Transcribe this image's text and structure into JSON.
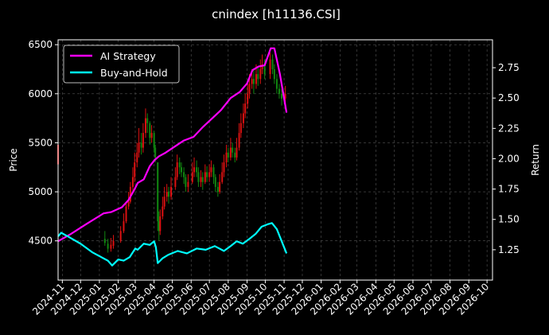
{
  "chart_data": {
    "type": "line",
    "title": "cnindex [h11136.CSI]",
    "ylabel_left": "Price",
    "ylabel_right": "Return",
    "ylim_left": [
      4100,
      6550
    ],
    "ylim_right": [
      1.0,
      2.98
    ],
    "xlim": [
      "2024-10-25",
      "2026-10-10"
    ],
    "x_tick_labels": [
      "2024-11",
      "2024-12",
      "2025-01",
      "2025-02",
      "2025-03",
      "2025-04",
      "2025-05",
      "2025-06",
      "2025-07",
      "2025-08",
      "2025-09",
      "2025-10",
      "2025-11",
      "2025-12",
      "2026-01",
      "2026-02",
      "2026-03",
      "2026-04",
      "2026-05",
      "2026-06",
      "2026-07",
      "2026-08",
      "2026-09",
      "2026-10"
    ],
    "y_ticks_left": [
      4500,
      5000,
      5500,
      6000,
      6500
    ],
    "y_ticks_right": [
      1.25,
      1.5,
      1.75,
      2.0,
      2.25,
      2.5,
      2.75
    ],
    "grid": true,
    "legend": {
      "placement": "top-left",
      "entries": [
        "AI Strategy",
        "Buy-and-Hold"
      ]
    },
    "colors": {
      "background": "#000000",
      "ai_strategy": "#ff00ff",
      "buy_and_hold": "#00ffff",
      "candle_up": "#dd1111",
      "candle_down": "#118811",
      "grid": "#555555"
    },
    "series": [
      {
        "name": "AI Strategy",
        "axis": "right",
        "points": [
          [
            "2024-10-25",
            1.32
          ],
          [
            "2024-11-15",
            1.38
          ],
          [
            "2024-12-10",
            1.46
          ],
          [
            "2025-01-08",
            1.55
          ],
          [
            "2025-01-20",
            1.56
          ],
          [
            "2025-02-07",
            1.6
          ],
          [
            "2025-02-18",
            1.66
          ],
          [
            "2025-02-28",
            1.75
          ],
          [
            "2025-03-05",
            1.8
          ],
          [
            "2025-03-15",
            1.83
          ],
          [
            "2025-03-25",
            1.94
          ],
          [
            "2025-04-02",
            1.99
          ],
          [
            "2025-04-09",
            2.02
          ],
          [
            "2025-04-20",
            2.05
          ],
          [
            "2025-05-05",
            2.1
          ],
          [
            "2025-05-20",
            2.15
          ],
          [
            "2025-06-05",
            2.18
          ],
          [
            "2025-06-20",
            2.26
          ],
          [
            "2025-07-05",
            2.33
          ],
          [
            "2025-07-20",
            2.4
          ],
          [
            "2025-08-05",
            2.5
          ],
          [
            "2025-08-20",
            2.55
          ],
          [
            "2025-09-01",
            2.62
          ],
          [
            "2025-09-10",
            2.73
          ],
          [
            "2025-09-20",
            2.76
          ],
          [
            "2025-09-30",
            2.77
          ],
          [
            "2025-10-05",
            2.84
          ],
          [
            "2025-10-10",
            2.91
          ],
          [
            "2025-10-16",
            2.91
          ],
          [
            "2025-10-25",
            2.7
          ],
          [
            "2025-11-05",
            2.38
          ]
        ]
      },
      {
        "name": "Buy-and-Hold",
        "axis": "right",
        "points": [
          [
            "2024-10-25",
            1.36
          ],
          [
            "2024-10-30",
            1.39
          ],
          [
            "2024-11-10",
            1.36
          ],
          [
            "2024-12-01",
            1.3
          ],
          [
            "2024-12-20",
            1.23
          ],
          [
            "2025-01-15",
            1.16
          ],
          [
            "2025-01-22",
            1.12
          ],
          [
            "2025-02-01",
            1.17
          ],
          [
            "2025-02-10",
            1.16
          ],
          [
            "2025-02-20",
            1.19
          ],
          [
            "2025-03-01",
            1.26
          ],
          [
            "2025-03-05",
            1.25
          ],
          [
            "2025-03-15",
            1.3
          ],
          [
            "2025-03-25",
            1.29
          ],
          [
            "2025-04-01",
            1.32
          ],
          [
            "2025-04-04",
            1.27
          ],
          [
            "2025-04-07",
            1.14
          ],
          [
            "2025-04-15",
            1.18
          ],
          [
            "2025-04-25",
            1.21
          ],
          [
            "2025-05-10",
            1.24
          ],
          [
            "2025-05-25",
            1.22
          ],
          [
            "2025-06-10",
            1.26
          ],
          [
            "2025-06-25",
            1.25
          ],
          [
            "2025-07-10",
            1.28
          ],
          [
            "2025-07-25",
            1.24
          ],
          [
            "2025-08-05",
            1.28
          ],
          [
            "2025-08-15",
            1.32
          ],
          [
            "2025-08-25",
            1.3
          ],
          [
            "2025-09-05",
            1.34
          ],
          [
            "2025-09-15",
            1.38
          ],
          [
            "2025-09-25",
            1.44
          ],
          [
            "2025-10-05",
            1.46
          ],
          [
            "2025-10-12",
            1.47
          ],
          [
            "2025-10-20",
            1.42
          ],
          [
            "2025-11-05",
            1.22
          ]
        ]
      }
    ],
    "candlesticks": {
      "axis": "left",
      "description": "approximate daily OHLC: each entry [date, open, close, high, low]",
      "data": [
        [
          "2024-10-25",
          5280,
          5480,
          5620,
          5250
        ],
        [
          "2025-01-10",
          4520,
          4480,
          4600,
          4450
        ],
        [
          "2025-01-15",
          4470,
          4420,
          4520,
          4380
        ],
        [
          "2025-01-20",
          4420,
          4460,
          4530,
          4390
        ],
        [
          "2025-01-24",
          4450,
          4500,
          4560,
          4420
        ],
        [
          "2025-02-05",
          4500,
          4600,
          4650,
          4480
        ],
        [
          "2025-02-10",
          4600,
          4700,
          4780,
          4580
        ],
        [
          "2025-02-14",
          4700,
          4850,
          4900,
          4680
        ],
        [
          "2025-02-18",
          4850,
          4900,
          5000,
          4820
        ],
        [
          "2025-02-21",
          4900,
          5050,
          5100,
          4880
        ],
        [
          "2025-02-25",
          5050,
          5150,
          5250,
          5000
        ],
        [
          "2025-02-28",
          5150,
          5300,
          5400,
          5100
        ],
        [
          "2025-03-04",
          5300,
          5400,
          5500,
          5250
        ],
        [
          "2025-03-07",
          5400,
          5500,
          5650,
          5350
        ],
        [
          "2025-03-11",
          5500,
          5450,
          5600,
          5380
        ],
        [
          "2025-03-14",
          5450,
          5600,
          5700,
          5400
        ],
        [
          "2025-03-18",
          5600,
          5750,
          5850,
          5550
        ],
        [
          "2025-03-21",
          5750,
          5700,
          5800,
          5600
        ],
        [
          "2025-03-25",
          5700,
          5550,
          5720,
          5480
        ],
        [
          "2025-03-28",
          5550,
          5600,
          5680,
          5500
        ],
        [
          "2025-04-01",
          5600,
          5450,
          5620,
          5400
        ],
        [
          "2025-04-03",
          5450,
          5350,
          5480,
          5300
        ],
        [
          "2025-04-07",
          5300,
          4700,
          5300,
          4600
        ],
        [
          "2025-04-09",
          4700,
          4600,
          4800,
          4500
        ],
        [
          "2025-04-11",
          4600,
          4750,
          4820,
          4560
        ],
        [
          "2025-04-15",
          4750,
          4850,
          4950,
          4720
        ],
        [
          "2025-04-18",
          4850,
          4950,
          5050,
          4820
        ],
        [
          "2025-04-22",
          4950,
          5000,
          5080,
          4900
        ],
        [
          "2025-04-25",
          5000,
          4950,
          5050,
          4880
        ],
        [
          "2025-04-29",
          4950,
          5050,
          5150,
          4920
        ],
        [
          "2025-05-06",
          5050,
          5150,
          5250,
          5020
        ],
        [
          "2025-05-09",
          5150,
          5300,
          5380,
          5120
        ],
        [
          "2025-05-13",
          5300,
          5250,
          5350,
          5180
        ],
        [
          "2025-05-16",
          5250,
          5200,
          5300,
          5150
        ],
        [
          "2025-05-20",
          5200,
          5150,
          5250,
          5080
        ],
        [
          "2025-05-23",
          5150,
          5050,
          5180,
          5000
        ],
        [
          "2025-05-27",
          5050,
          5100,
          5180,
          5000
        ],
        [
          "2025-06-03",
          5100,
          5200,
          5300,
          5080
        ],
        [
          "2025-06-06",
          5200,
          5250,
          5350,
          5150
        ],
        [
          "2025-06-10",
          5250,
          5200,
          5320,
          5150
        ],
        [
          "2025-06-13",
          5200,
          5100,
          5250,
          5050
        ],
        [
          "2025-06-17",
          5100,
          5150,
          5220,
          5050
        ],
        [
          "2025-06-20",
          5150,
          5100,
          5200,
          5020
        ],
        [
          "2025-06-24",
          5100,
          5200,
          5280,
          5080
        ],
        [
          "2025-06-27",
          5200,
          5150,
          5260,
          5100
        ],
        [
          "2025-07-01",
          5150,
          5200,
          5280,
          5100
        ],
        [
          "2025-07-04",
          5200,
          5250,
          5320,
          5150
        ],
        [
          "2025-07-08",
          5250,
          5150,
          5280,
          5080
        ],
        [
          "2025-07-11",
          5150,
          5050,
          5180,
          5000
        ],
        [
          "2025-07-15",
          5050,
          5000,
          5100,
          4950
        ],
        [
          "2025-07-18",
          5000,
          5100,
          5180,
          4980
        ],
        [
          "2025-07-22",
          5100,
          5200,
          5300,
          5080
        ],
        [
          "2025-07-25",
          5200,
          5300,
          5380,
          5150
        ],
        [
          "2025-07-29",
          5300,
          5400,
          5480,
          5250
        ],
        [
          "2025-08-01",
          5400,
          5350,
          5450,
          5300
        ],
        [
          "2025-08-05",
          5350,
          5450,
          5550,
          5320
        ],
        [
          "2025-08-08",
          5450,
          5400,
          5500,
          5350
        ],
        [
          "2025-08-12",
          5400,
          5350,
          5450,
          5300
        ],
        [
          "2025-08-15",
          5350,
          5450,
          5550,
          5320
        ],
        [
          "2025-08-19",
          5450,
          5600,
          5700,
          5420
        ],
        [
          "2025-08-22",
          5600,
          5700,
          5800,
          5550
        ],
        [
          "2025-08-26",
          5700,
          5800,
          5900,
          5650
        ],
        [
          "2025-08-29",
          5800,
          5900,
          6000,
          5750
        ],
        [
          "2025-09-02",
          5900,
          6000,
          6100,
          5850
        ],
        [
          "2025-09-05",
          6000,
          6100,
          6200,
          5950
        ],
        [
          "2025-09-09",
          6100,
          6150,
          6250,
          6050
        ],
        [
          "2025-09-12",
          6150,
          6100,
          6250,
          6000
        ],
        [
          "2025-09-16",
          6100,
          6200,
          6300,
          6050
        ],
        [
          "2025-09-19",
          6200,
          6150,
          6280,
          6080
        ],
        [
          "2025-09-23",
          6150,
          6250,
          6350,
          6100
        ],
        [
          "2025-09-26",
          6250,
          6300,
          6400,
          6200
        ],
        [
          "2025-09-30",
          6300,
          6200,
          6350,
          6150
        ],
        [
          "2025-10-09",
          6200,
          6350,
          6420,
          6150
        ],
        [
          "2025-10-13",
          6350,
          6250,
          6400,
          6200
        ],
        [
          "2025-10-16",
          6250,
          6150,
          6300,
          6100
        ],
        [
          "2025-10-20",
          6150,
          6050,
          6200,
          6000
        ],
        [
          "2025-10-24",
          6050,
          6000,
          6100,
          5950
        ],
        [
          "2025-10-28",
          6000,
          5950,
          6050,
          5880
        ],
        [
          "2025-11-03",
          5950,
          6000,
          6080,
          5900
        ]
      ]
    }
  }
}
